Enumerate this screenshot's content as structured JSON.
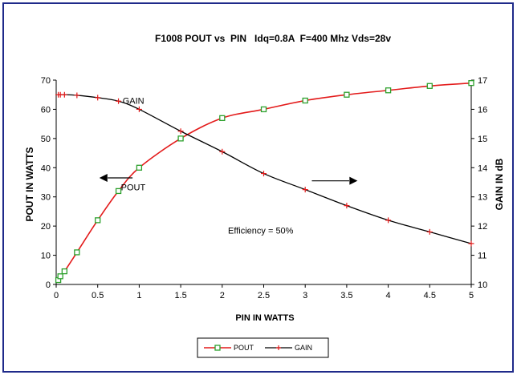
{
  "chart_data": {
    "type": "line",
    "title": "F1008 POUT vs  PIN   Idq=0.8A  F=400 Mhz Vds=28v",
    "xlabel": "PIN IN WATTS",
    "ylabel_left": "POUT IN WATTS",
    "ylabel_right": "GAIN IN dB",
    "xlim": [
      0,
      5
    ],
    "ylim_left": [
      0,
      70
    ],
    "ylim_right": [
      10,
      17
    ],
    "x_ticks": [
      "0",
      "0.5",
      "1",
      "1.5",
      "2",
      "2.5",
      "3",
      "3.5",
      "4",
      "4.5",
      "5"
    ],
    "y_left_ticks": [
      "0",
      "10",
      "20",
      "30",
      "40",
      "50",
      "60",
      "70"
    ],
    "y_right_ticks": [
      "10",
      "11",
      "12",
      "13",
      "14",
      "15",
      "16",
      "17"
    ],
    "grid": false,
    "series": [
      {
        "name": "POUT",
        "axis": "left",
        "color": "#e31a1a",
        "marker": "square",
        "x": [
          0.025,
          0.05,
          0.1,
          0.25,
          0.5,
          0.75,
          1,
          1.5,
          2,
          2.5,
          3,
          3.5,
          4,
          4.5,
          5
        ],
        "values": [
          1.5,
          2.8,
          4.5,
          11,
          22,
          32,
          40,
          50,
          57,
          60,
          63,
          65,
          66.5,
          68,
          69
        ]
      },
      {
        "name": "GAIN",
        "axis": "right",
        "color": "#000000",
        "marker": "plus",
        "x": [
          0.025,
          0.05,
          0.1,
          0.25,
          0.5,
          0.75,
          1,
          1.5,
          2,
          2.5,
          3,
          3.5,
          4,
          4.5,
          5
        ],
        "values": [
          16.5,
          16.5,
          16.5,
          16.48,
          16.4,
          16.28,
          16.0,
          15.25,
          14.55,
          13.8,
          13.25,
          12.7,
          12.2,
          11.8,
          11.4
        ]
      }
    ],
    "annotations": {
      "gain_label": "GAIN",
      "pout_label": "POUT",
      "efficiency": "Efficiency = 50%"
    },
    "legend_position": "bottom"
  }
}
